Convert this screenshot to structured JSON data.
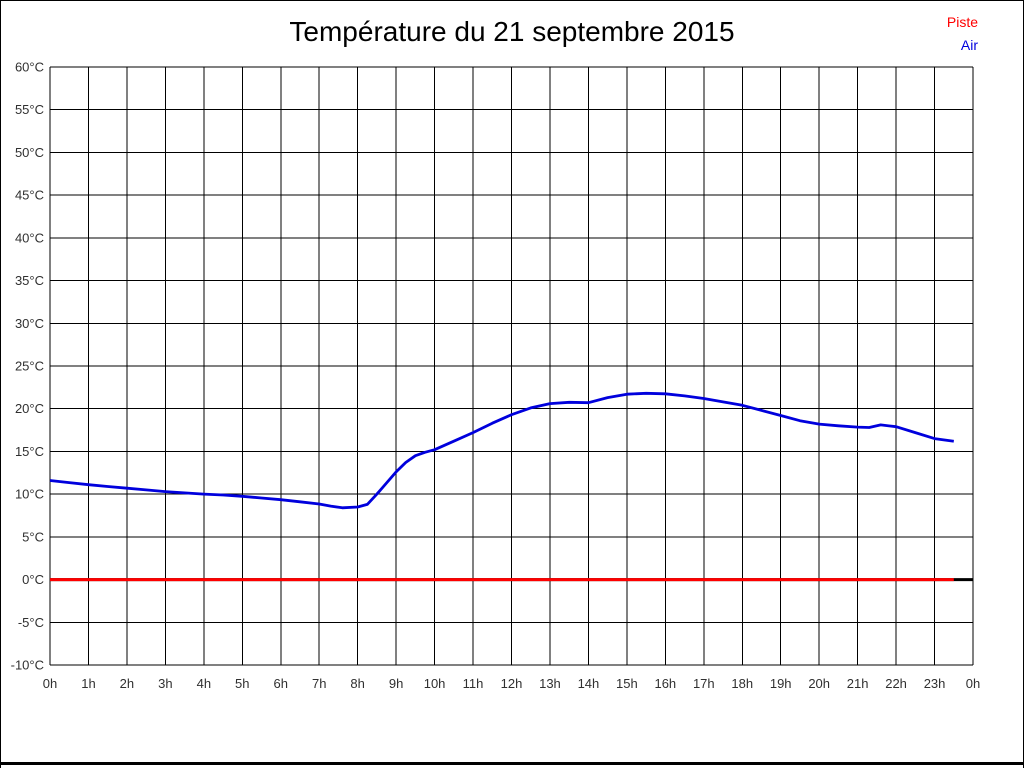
{
  "page": {
    "background": "#ffffff",
    "frame_color": "#000000"
  },
  "title": "Température du 21 septembre 2015",
  "legend": [
    {
      "label": "Piste",
      "color": "#ff0000"
    },
    {
      "label": "Air",
      "color": "#0000dd"
    }
  ],
  "chart_data": {
    "type": "line",
    "title": "Température du 21 septembre 2015",
    "xlabel": "",
    "ylabel": "",
    "x_unit": "hour of day",
    "y_unit": "°C",
    "xlim": [
      0,
      24
    ],
    "ylim": [
      -10,
      60
    ],
    "grid": true,
    "grid_color": "#000000",
    "tick_label_color": "#303030",
    "legend_position": "top-right",
    "x_tick_values": [
      0,
      1,
      2,
      3,
      4,
      5,
      6,
      7,
      8,
      9,
      10,
      11,
      12,
      13,
      14,
      15,
      16,
      17,
      18,
      19,
      20,
      21,
      22,
      23,
      24
    ],
    "x_tick_labels": [
      "0h",
      "1h",
      "2h",
      "3h",
      "4h",
      "5h",
      "6h",
      "7h",
      "8h",
      "9h",
      "10h",
      "11h",
      "12h",
      "13h",
      "14h",
      "15h",
      "16h",
      "17h",
      "18h",
      "19h",
      "20h",
      "21h",
      "22h",
      "23h",
      "0h"
    ],
    "y_tick_values": [
      60,
      55,
      50,
      45,
      40,
      35,
      30,
      25,
      20,
      15,
      10,
      5,
      0,
      -5,
      -10
    ],
    "y_tick_labels": [
      "60°C",
      "55°C",
      "50°C",
      "45°C",
      "40°C",
      "35°C",
      "30°C",
      "25°C",
      "20°C",
      "15°C",
      "10°C",
      "5°C",
      "0°C",
      "-5°C",
      "-10°C"
    ],
    "zero_line": {
      "y": 0,
      "x": [
        0,
        24
      ],
      "color": "#000000",
      "width": 3
    },
    "series": [
      {
        "name": "Piste",
        "color": "#ff0000",
        "width": 3,
        "x": [
          0,
          23.5
        ],
        "y": [
          0,
          0
        ]
      },
      {
        "name": "Air",
        "color": "#0000dd",
        "width": 2.8,
        "x": [
          0,
          0.5,
          1,
          1.5,
          2,
          2.5,
          3,
          3.5,
          4,
          4.5,
          5,
          5.5,
          6,
          6.5,
          7,
          7.3,
          7.6,
          8,
          8.25,
          8.5,
          8.75,
          9,
          9.25,
          9.5,
          9.75,
          10,
          10.5,
          11,
          11.5,
          12,
          12.5,
          13,
          13.5,
          14,
          14.5,
          15,
          15.5,
          16,
          16.5,
          17,
          17.5,
          18,
          18.5,
          19,
          19.5,
          20,
          20.5,
          21,
          21.3,
          21.6,
          22,
          22.5,
          23,
          23.5
        ],
        "y": [
          11.6,
          11.35,
          11.1,
          10.9,
          10.7,
          10.5,
          10.3,
          10.15,
          10.0,
          9.9,
          9.75,
          9.55,
          9.35,
          9.1,
          8.85,
          8.6,
          8.4,
          8.5,
          8.8,
          10.0,
          11.3,
          12.6,
          13.7,
          14.5,
          14.9,
          15.2,
          16.2,
          17.2,
          18.3,
          19.3,
          20.1,
          20.6,
          20.75,
          20.7,
          21.3,
          21.7,
          21.8,
          21.75,
          21.5,
          21.2,
          20.8,
          20.4,
          19.8,
          19.2,
          18.6,
          18.2,
          18.0,
          17.85,
          17.8,
          18.1,
          17.9,
          17.2,
          16.5,
          16.2
        ]
      }
    ]
  }
}
